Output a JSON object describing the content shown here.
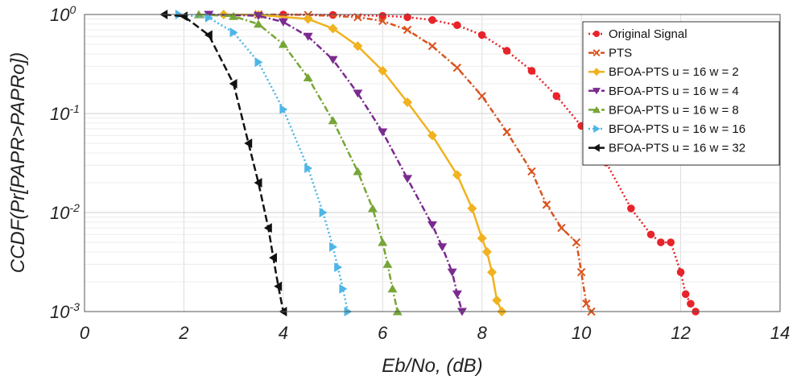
{
  "chart_data": {
    "type": "line",
    "title": "",
    "xlabel": "Eb/No, (dB)",
    "ylabel": "CCDF(Pr[PAPR>PAPRo])",
    "xlim": [
      0,
      14
    ],
    "ylim": [
      0.001,
      1
    ],
    "yscale": "log",
    "grid": true,
    "legend_position": "top-right",
    "x_ticks": [
      0,
      2,
      4,
      6,
      8,
      10,
      12,
      14
    ],
    "x_tick_labels": [
      "0",
      "2",
      "4",
      "6",
      "8",
      "10",
      "12",
      "14"
    ],
    "y_ticks": [
      1,
      0.1,
      0.01,
      0.001
    ],
    "y_tick_labels": [
      {
        "base": "10",
        "exp": "0"
      },
      {
        "base": "10",
        "exp": "-1"
      },
      {
        "base": "10",
        "exp": "-2"
      },
      {
        "base": "10",
        "exp": "-3"
      }
    ],
    "series": [
      {
        "name": "Original Signal",
        "color": "#e8232a",
        "marker": "circle",
        "dash": "2,3",
        "x": [
          4.0,
          5.0,
          6.0,
          6.5,
          7.0,
          7.5,
          8.0,
          8.5,
          9.0,
          9.5,
          10.0,
          10.5,
          11.0,
          11.4,
          11.6,
          11.8,
          12.0,
          12.1,
          12.2,
          12.3
        ],
        "y": [
          1.0,
          0.99,
          0.97,
          0.94,
          0.88,
          0.78,
          0.62,
          0.43,
          0.27,
          0.15,
          0.075,
          0.032,
          0.011,
          0.006,
          0.005,
          0.005,
          0.0025,
          0.0015,
          0.0012,
          0.001
        ]
      },
      {
        "name": "PTS",
        "color": "#d9531e",
        "marker": "x",
        "dash": "7,3,2,3",
        "x": [
          3.5,
          4.5,
          5.5,
          6.0,
          6.5,
          7.0,
          7.5,
          8.0,
          8.5,
          9.0,
          9.3,
          9.6,
          9.9,
          10.0,
          10.1,
          10.2
        ],
        "y": [
          1.0,
          0.99,
          0.94,
          0.86,
          0.7,
          0.48,
          0.29,
          0.15,
          0.065,
          0.026,
          0.012,
          0.007,
          0.005,
          0.0025,
          0.0012,
          0.001
        ]
      },
      {
        "name": "BFOA-PTS u = 16 w = 2",
        "color": "#f0b21f",
        "marker": "diamond",
        "dash": "",
        "x": [
          2.8,
          3.5,
          4.5,
          5.0,
          5.5,
          6.0,
          6.5,
          7.0,
          7.5,
          7.8,
          8.0,
          8.1,
          8.2,
          8.3,
          8.4
        ],
        "y": [
          1.0,
          0.99,
          0.9,
          0.72,
          0.48,
          0.27,
          0.13,
          0.06,
          0.024,
          0.011,
          0.0055,
          0.004,
          0.0025,
          0.0013,
          0.001
        ]
      },
      {
        "name": "BFOA-PTS u = 16 w = 4",
        "color": "#7b2a90",
        "marker": "triangle-down",
        "dash": "8,3,2,3",
        "x": [
          2.5,
          3.5,
          4.0,
          4.5,
          5.0,
          5.5,
          6.0,
          6.5,
          7.0,
          7.2,
          7.4,
          7.5,
          7.6
        ],
        "y": [
          1.0,
          0.97,
          0.84,
          0.6,
          0.35,
          0.16,
          0.065,
          0.022,
          0.0075,
          0.0045,
          0.0025,
          0.0015,
          0.001
        ]
      },
      {
        "name": "BFOA-PTS u = 16 w = 8",
        "color": "#77a637",
        "marker": "triangle-up",
        "dash": "8,3,2,3",
        "x": [
          2.3,
          3.0,
          3.5,
          4.0,
          4.5,
          5.0,
          5.5,
          5.8,
          6.0,
          6.1,
          6.2,
          6.3
        ],
        "y": [
          1.0,
          0.96,
          0.8,
          0.5,
          0.23,
          0.085,
          0.026,
          0.011,
          0.005,
          0.003,
          0.0017,
          0.001
        ]
      },
      {
        "name": "BFOA-PTS u = 16 w = 16",
        "color": "#4db6e6",
        "marker": "triangle-right",
        "dash": "2,3",
        "x": [
          1.9,
          2.5,
          3.0,
          3.5,
          4.0,
          4.5,
          4.8,
          5.0,
          5.1,
          5.2,
          5.3
        ],
        "y": [
          1.0,
          0.93,
          0.66,
          0.33,
          0.11,
          0.028,
          0.01,
          0.0045,
          0.0028,
          0.0017,
          0.001
        ]
      },
      {
        "name": "BFOA-PTS u = 16 w = 32",
        "color": "#111111",
        "marker": "triangle-left",
        "dash": "9,4",
        "x": [
          1.6,
          2.0,
          2.5,
          3.0,
          3.3,
          3.5,
          3.7,
          3.8,
          3.9,
          4.0
        ],
        "y": [
          1.0,
          0.96,
          0.62,
          0.2,
          0.05,
          0.02,
          0.007,
          0.0035,
          0.0018,
          0.001
        ]
      }
    ]
  }
}
